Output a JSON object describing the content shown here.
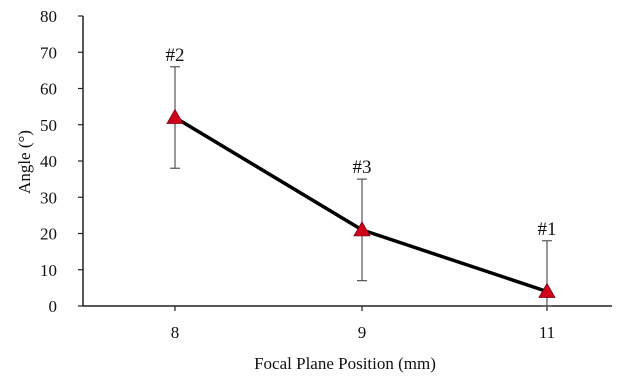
{
  "chart_data": {
    "type": "line",
    "categories": [
      "8",
      "9",
      "11"
    ],
    "series": [
      {
        "values": [
          52,
          21,
          4
        ],
        "error": [
          14,
          14,
          14
        ],
        "point_labels": [
          "#2",
          "#3",
          "#1"
        ],
        "line_color": "#000000",
        "marker_color": "#d0021b",
        "marker": "triangle"
      }
    ],
    "xlabel": "Focal Plane Position  (mm)",
    "ylabel": "Angle  (°)",
    "ylim": [
      0,
      80
    ],
    "yticks": [
      0,
      10,
      20,
      30,
      40,
      50,
      60,
      70,
      80
    ],
    "grid": false
  }
}
